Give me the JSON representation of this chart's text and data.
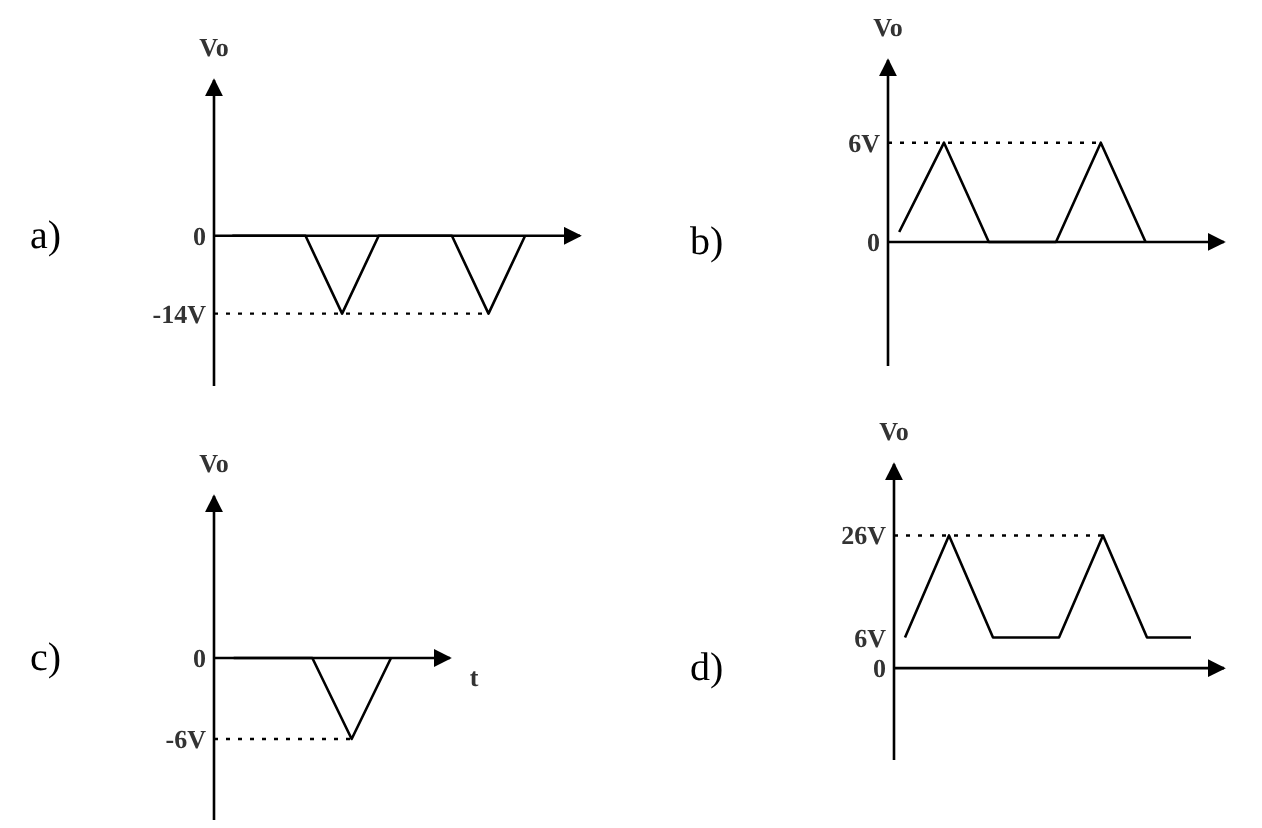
{
  "chart_data": [
    {
      "type": "line",
      "title": "a)",
      "ylabel": "Vo",
      "categories": [
        null,
        null,
        null,
        null,
        null,
        null,
        null,
        null,
        null,
        null
      ],
      "values": [
        0,
        0,
        0,
        -14,
        0,
        0,
        0,
        -14,
        0,
        null
      ],
      "color": "#000000",
      "ylim": [
        -27,
        28
      ],
      "yticks": [
        {
          "value": 0,
          "label": "0"
        },
        {
          "value": -14,
          "label": "-14V"
        }
      ],
      "tick_labels": "y",
      "ref_lines": [
        {
          "axis": "y",
          "value": -14,
          "line_style": "dotted"
        }
      ]
    },
    {
      "type": "line",
      "title": "b)",
      "ylabel": "Vo",
      "categories": [
        null,
        null,
        null,
        null,
        null,
        null,
        null,
        null,
        null,
        null,
        null,
        null,
        null,
        null,
        null
      ],
      "values": [
        0.6,
        3.3,
        6,
        3,
        0,
        0,
        0,
        0,
        3,
        6,
        3,
        0,
        null,
        null,
        null
      ],
      "color": "#000000",
      "ylim": [
        -7.5,
        11
      ],
      "yticks": [
        {
          "value": 0,
          "label": "0"
        },
        {
          "value": 6,
          "label": "6V"
        }
      ],
      "tick_labels": "y",
      "ref_lines": [
        {
          "axis": "y",
          "value": 6,
          "line_style": "dotted"
        }
      ]
    },
    {
      "type": "line",
      "title": "c)",
      "xlabel": "t",
      "ylabel": "Vo",
      "categories": [
        null,
        null,
        null,
        null,
        null,
        null
      ],
      "values": [
        0,
        0,
        0,
        -6,
        0,
        null
      ],
      "color": "#000000",
      "ylim": [
        -12,
        12
      ],
      "yticks": [
        {
          "value": 0,
          "label": "0"
        },
        {
          "value": -6,
          "label": "-6V"
        }
      ],
      "tick_labels": "y",
      "ref_lines": [
        {
          "axis": "y",
          "value": -6,
          "line_style": "dotted"
        }
      ]
    },
    {
      "type": "line",
      "title": "d)",
      "ylabel": "Vo",
      "categories": [
        null,
        null,
        null,
        null,
        null,
        null,
        null,
        null,
        null,
        null,
        null,
        null,
        null,
        null,
        null
      ],
      "values": [
        6,
        16,
        26,
        16,
        6,
        6,
        6,
        6,
        16,
        26,
        16,
        6,
        6,
        6,
        null
      ],
      "color": "#000000",
      "ylim": [
        -18,
        40
      ],
      "yticks": [
        {
          "value": 0,
          "label": "0"
        },
        {
          "value": 6,
          "label": "6V"
        },
        {
          "value": 26,
          "label": "26V"
        }
      ],
      "tick_labels": "y",
      "ref_lines": [
        {
          "axis": "y",
          "value": 26,
          "line_style": "dotted"
        }
      ]
    }
  ]
}
